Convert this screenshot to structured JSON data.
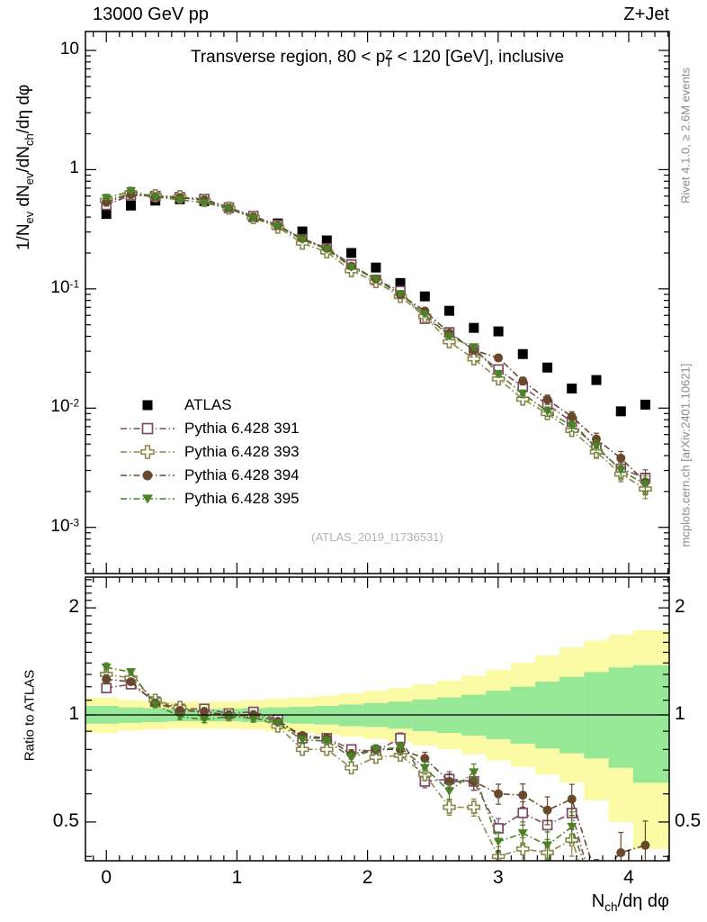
{
  "header": {
    "left": "13000 GeV pp",
    "right": "Z+Jet"
  },
  "plot_title_segments": [
    {
      "t": "Transverse region, 80 < p"
    },
    {
      "sup": "Z",
      "sub": "T"
    },
    {
      "t": " < 120 [GeV], inclusive"
    }
  ],
  "labels": {
    "y_main_segments": [
      {
        "t": "1/N"
      },
      {
        "sub": "ev"
      },
      {
        "t": " dN"
      },
      {
        "sub": "ev"
      },
      {
        "t": "/dN"
      },
      {
        "sub": "ch"
      },
      {
        "t": "/dη dφ"
      }
    ],
    "ratio": "Ratio to ATLAS",
    "x_segments": [
      {
        "t": "N"
      },
      {
        "sub": "ch"
      },
      {
        "t": "/dη dφ"
      }
    ]
  },
  "credits": {
    "top": "Rivet 4.1.0, ≥ 2.6M events",
    "bottom": "mcplots.cern.ch [arXiv:2401.10621]"
  },
  "watermark": "(ATLAS_2019_I1736531)",
  "chart_data": {
    "type": "line",
    "title": "Transverse region, 80 < pT(Z) < 120 [GeV], inclusive",
    "xlabel": "Nch/deta dphi",
    "ylabel": "1/Nev dNev/dNch/deta dphi",
    "ratio_ylabel": "Ratio to ATLAS",
    "x_range": [
      -0.16,
      4.31
    ],
    "y_range_main": [
      0.00041,
      14.4
    ],
    "y_range_ratio": [
      0.389,
      2.44
    ],
    "log_y_main": true,
    "log_y_ratio": true,
    "bin_half_width": 0.094,
    "x": [
      0.0,
      0.188,
      0.375,
      0.563,
      0.75,
      0.938,
      1.126,
      1.313,
      1.501,
      1.688,
      1.876,
      2.064,
      2.251,
      2.439,
      2.626,
      2.814,
      3.002,
      3.189,
      3.377,
      3.564,
      3.752,
      3.94,
      4.127
    ],
    "x_ticks": [
      {
        "v": 0,
        "t": "0"
      },
      {
        "v": 1,
        "t": "1"
      },
      {
        "v": 2,
        "t": "2"
      },
      {
        "v": 3,
        "t": "3"
      },
      {
        "v": 4,
        "t": "4"
      }
    ],
    "y_ticks_main": [
      {
        "v": 10,
        "t": "10",
        "e": ""
      },
      {
        "v": 1,
        "t": "1",
        "e": ""
      },
      {
        "v": 0.1,
        "t": "10",
        "e": "-1"
      },
      {
        "v": 0.01,
        "t": "10",
        "e": "-2"
      },
      {
        "v": 0.001,
        "t": "10",
        "e": "-3"
      }
    ],
    "y_ticks_ratio": [
      {
        "v": 2,
        "t": "2"
      },
      {
        "v": 1,
        "t": "1"
      },
      {
        "v": 0.5,
        "t": "0.5"
      }
    ],
    "series": [
      {
        "id": "atlas",
        "name": "ATLAS",
        "marker": "square",
        "style": "filled",
        "color": "#000000",
        "line": "none",
        "main": [
          0.425,
          0.5,
          0.55,
          0.565,
          0.545,
          0.476,
          0.4,
          0.354,
          0.303,
          0.255,
          0.2,
          0.151,
          0.112,
          0.0865,
          0.0655,
          0.0471,
          0.044,
          0.0284,
          0.0219,
          0.0146,
          0.0172,
          0.0094,
          0.0107
        ],
        "ratio": null
      },
      {
        "id": "py391",
        "name": "Pythia 6.428 391",
        "marker": "square",
        "style": "open",
        "color": "#7d4a66",
        "line": "dashdot",
        "main": [
          0.506,
          0.61,
          0.6,
          0.588,
          0.567,
          0.481,
          0.408,
          0.343,
          0.261,
          0.219,
          0.16,
          0.119,
          0.096,
          0.0562,
          0.0432,
          0.0306,
          0.0211,
          0.0151,
          0.0107,
          0.0077,
          0.0046,
          0.0031,
          0.0026
        ],
        "ratio": [
          1.19,
          1.22,
          1.09,
          1.04,
          1.04,
          1.01,
          1.02,
          0.97,
          0.86,
          0.86,
          0.8,
          0.79,
          0.86,
          0.65,
          0.66,
          0.65,
          0.48,
          0.53,
          0.49,
          0.53,
          0.3,
          0.33,
          0.33
        ]
      },
      {
        "id": "py393",
        "name": "Pythia 6.428 393",
        "marker": "cross",
        "style": "open",
        "color": "#8c874b",
        "line": "dashdot",
        "main": [
          0.553,
          0.635,
          0.605,
          0.593,
          0.55,
          0.476,
          0.396,
          0.329,
          0.242,
          0.204,
          0.142,
          0.115,
          0.0862,
          0.0588,
          0.036,
          0.0259,
          0.0176,
          0.0119,
          0.009,
          0.0065,
          0.0043,
          0.0028,
          0.0021
        ],
        "ratio": [
          1.3,
          1.27,
          1.1,
          1.05,
          1.01,
          1.0,
          0.99,
          0.93,
          0.8,
          0.8,
          0.71,
          0.76,
          0.77,
          0.68,
          0.55,
          0.55,
          0.4,
          0.42,
          0.41,
          0.445,
          0.28,
          0.3,
          0.3
        ]
      },
      {
        "id": "py394",
        "name": "Pythia 6.428 394",
        "marker": "circle",
        "style": "filled",
        "color": "#69492d",
        "line": "dashdot",
        "main": [
          0.536,
          0.62,
          0.594,
          0.582,
          0.556,
          0.476,
          0.4,
          0.34,
          0.265,
          0.219,
          0.155,
          0.121,
          0.0896,
          0.0653,
          0.0426,
          0.0306,
          0.0264,
          0.0169,
          0.0118,
          0.0085,
          0.0055,
          0.0038,
          0.0024
        ],
        "ratio": [
          1.26,
          1.24,
          1.08,
          1.03,
          1.02,
          1.0,
          1.0,
          0.96,
          0.875,
          0.86,
          0.775,
          0.8,
          0.8,
          0.755,
          0.65,
          0.65,
          0.6,
          0.595,
          0.54,
          0.58,
          0.35,
          0.41,
          0.43
        ]
      },
      {
        "id": "py395",
        "name": "Pythia 6.428 395",
        "marker": "triangle-down",
        "style": "filled",
        "color": "#4b8228",
        "line": "dashdot",
        "main": [
          0.578,
          0.66,
          0.589,
          0.559,
          0.529,
          0.471,
          0.392,
          0.336,
          0.258,
          0.215,
          0.152,
          0.121,
          0.0907,
          0.0614,
          0.04,
          0.0325,
          0.0194,
          0.0132,
          0.0094,
          0.0071,
          0.0048,
          0.003,
          0.0023
        ],
        "ratio": [
          1.36,
          1.32,
          1.07,
          0.99,
          0.97,
          0.99,
          0.98,
          0.95,
          0.85,
          0.845,
          0.76,
          0.8,
          0.81,
          0.71,
          0.61,
          0.69,
          0.44,
          0.465,
          0.43,
          0.485,
          0.3,
          0.32,
          0.28
        ]
      }
    ],
    "atlas_err_frac": 0.015,
    "mc_err_frac": [
      0.03,
      0.02,
      0.02,
      0.02,
      0.02,
      0.02,
      0.02,
      0.02,
      0.02,
      0.025,
      0.03,
      0.03,
      0.035,
      0.04,
      0.05,
      0.055,
      0.065,
      0.075,
      0.09,
      0.1,
      0.12,
      0.14,
      0.17
    ],
    "bands": {
      "yellow": {
        "color": "#fbfba5",
        "hi": [
          1.12,
          1.1,
          1.095,
          1.09,
          1.09,
          1.09,
          1.1,
          1.11,
          1.12,
          1.13,
          1.15,
          1.17,
          1.19,
          1.22,
          1.25,
          1.29,
          1.34,
          1.4,
          1.47,
          1.55,
          1.62,
          1.68,
          1.73
        ],
        "lo": [
          0.89,
          0.905,
          0.91,
          0.915,
          0.915,
          0.915,
          0.91,
          0.9,
          0.89,
          0.88,
          0.87,
          0.855,
          0.84,
          0.82,
          0.8,
          0.775,
          0.745,
          0.715,
          0.68,
          0.645,
          0.575,
          0.5,
          0.42
        ]
      },
      "green": {
        "color": "#96e896",
        "hi": [
          1.06,
          1.05,
          1.045,
          1.04,
          1.04,
          1.04,
          1.045,
          1.05,
          1.055,
          1.06,
          1.07,
          1.08,
          1.09,
          1.105,
          1.12,
          1.14,
          1.17,
          1.2,
          1.24,
          1.28,
          1.32,
          1.36,
          1.38
        ],
        "lo": [
          0.945,
          0.95,
          0.955,
          0.96,
          0.96,
          0.96,
          0.955,
          0.95,
          0.945,
          0.94,
          0.93,
          0.925,
          0.915,
          0.9,
          0.89,
          0.875,
          0.855,
          0.83,
          0.805,
          0.78,
          0.755,
          0.71,
          0.645
        ]
      }
    },
    "legend_position": "middle-left",
    "grid": false
  }
}
